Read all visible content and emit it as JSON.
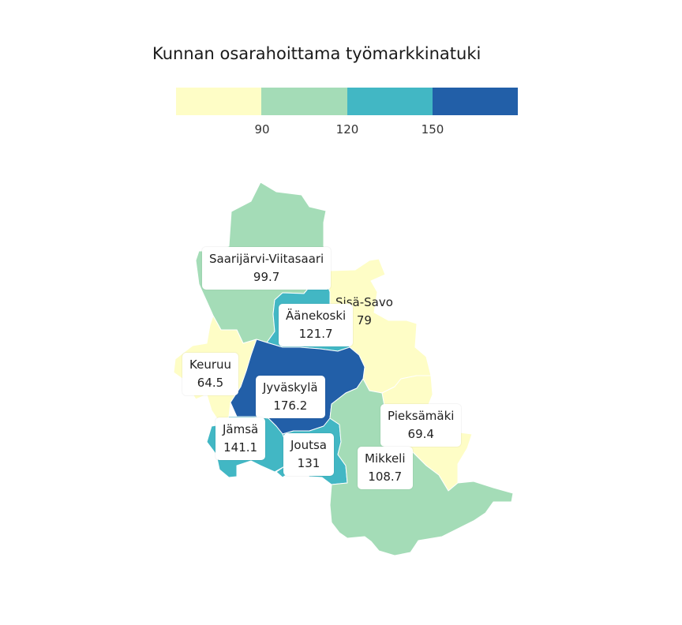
{
  "title": "Kunnan osarahoittama työmarkkinatuki",
  "legend": {
    "colors": [
      "#fefdc6",
      "#a4dcb7",
      "#42b7c4",
      "#225fa8"
    ],
    "ticks": [
      "90",
      "120",
      "150"
    ]
  },
  "regions": [
    {
      "name": "Saarijärvi-Viitasaari",
      "value": "99.7",
      "color": "#a4dcb7"
    },
    {
      "name": "Sisä-Savo",
      "value": "79",
      "color": "#fefdc6"
    },
    {
      "name": "Äänekoski",
      "value": "121.7",
      "color": "#42b7c4"
    },
    {
      "name": "Keuruu",
      "value": "64.5",
      "color": "#fefdc6"
    },
    {
      "name": "Jyväskylä",
      "value": "176.2",
      "color": "#225fa8"
    },
    {
      "name": "Pieksämäki",
      "value": "69.4",
      "color": "#fefdc6"
    },
    {
      "name": "Jämsä",
      "value": "141.1",
      "color": "#42b7c4"
    },
    {
      "name": "Joutsa",
      "value": "131",
      "color": "#42b7c4"
    },
    {
      "name": "Mikkeli",
      "value": "108.7",
      "color": "#a4dcb7"
    }
  ]
}
